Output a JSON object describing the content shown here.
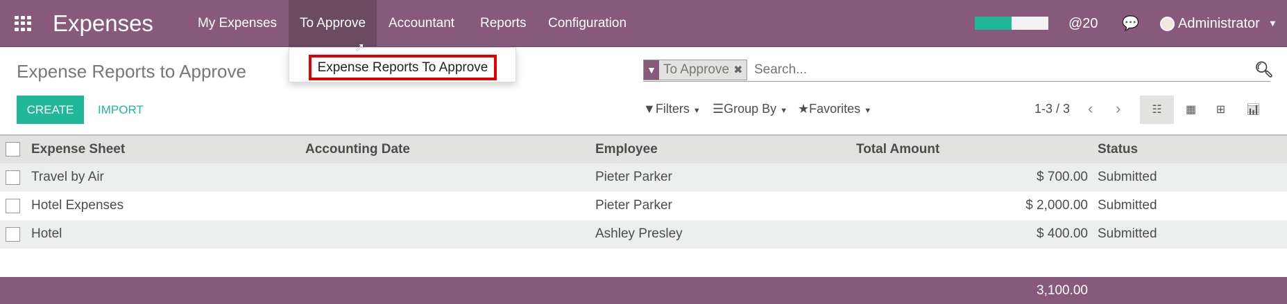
{
  "app": {
    "title": "Expenses",
    "menu": [
      "My Expenses",
      "To Approve",
      "Accountant",
      "Reports",
      "Configuration"
    ]
  },
  "dropdown": {
    "items": [
      "Expense Reports To Approve"
    ]
  },
  "systray": {
    "progress": 0.5,
    "mentions": "@20",
    "user": "Administrator"
  },
  "page": {
    "title": "Expense Reports to Approve",
    "create": "CREATE",
    "import": "IMPORT"
  },
  "search": {
    "facet": "To Approve",
    "placeholder": "Search..."
  },
  "toolbar": {
    "filters": "Filters",
    "group_by": "Group By",
    "favorites": "Favorites",
    "pager": "1-3 / 3"
  },
  "table": {
    "headers": [
      "Expense Sheet",
      "Accounting Date",
      "Employee",
      "Total Amount",
      "Status"
    ],
    "rows": [
      {
        "sheet": "Travel by Air",
        "date": "",
        "employee": "Pieter Parker",
        "amount": "$ 700.00",
        "status": "Submitted"
      },
      {
        "sheet": "Hotel Expenses",
        "date": "",
        "employee": "Pieter Parker",
        "amount": "$ 2,000.00",
        "status": "Submitted"
      },
      {
        "sheet": "Hotel",
        "date": "",
        "employee": "Ashley Presley",
        "amount": "$ 400.00",
        "status": "Submitted"
      }
    ],
    "total": "3,100.00"
  },
  "colors": {
    "brand": "#875A7B",
    "accent": "#21B799",
    "highlight": "#E00000"
  }
}
